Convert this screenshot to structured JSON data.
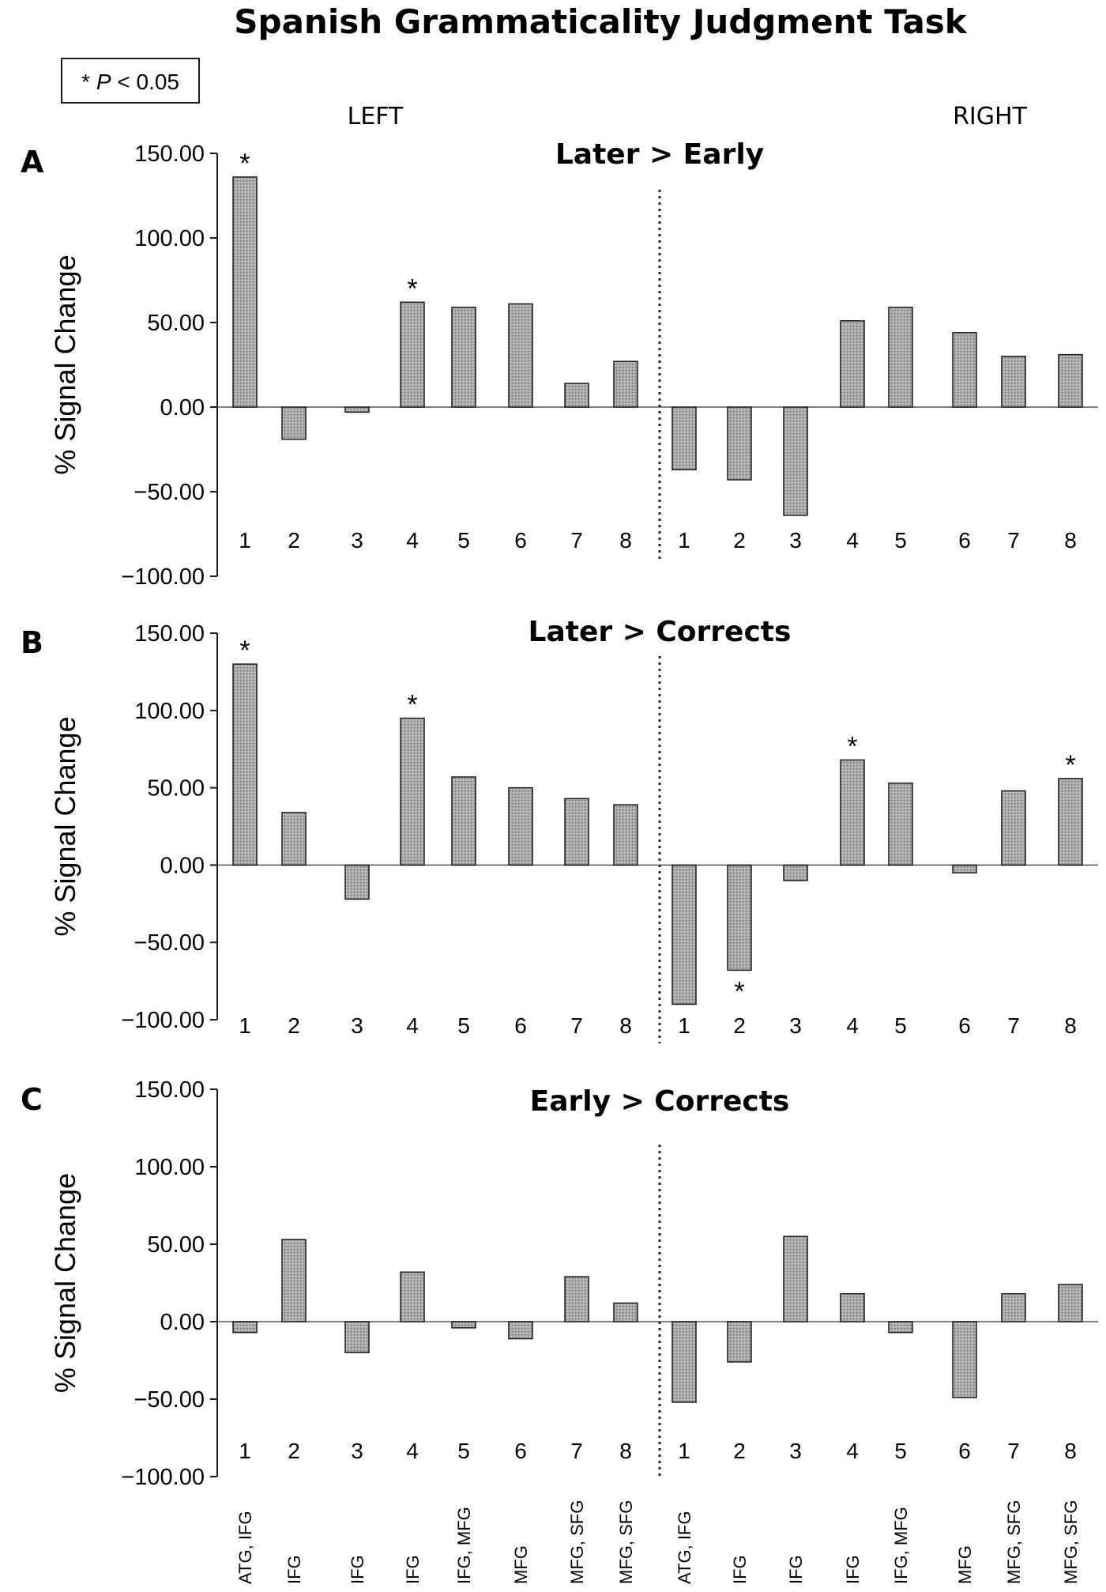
{
  "figure": {
    "title": "Spanish Grammaticality Judgment Task",
    "legend": "* P < 0.05",
    "legend_star": "*",
    "legend_p": "P",
    "legend_rest": " < 0.05",
    "left_label": "LEFT",
    "right_label": "RIGHT",
    "region_labels": [
      "ATG, IFG",
      "IFG",
      "IFG",
      "IFG",
      "IFG, MFG",
      "MFG",
      "MFG, SFG",
      "MFG, SFG",
      "ATG, IFG",
      "IFG",
      "IFG",
      "IFG",
      "IFG, MFG",
      "MFG",
      "MFG, SFG",
      "MFG, SFG"
    ],
    "colors": {
      "bar_fill": "#a9a9a9",
      "bar_stroke": "#1a1a1a",
      "axis": "#1a1a1a",
      "baseline": "#555555"
    }
  },
  "chart_data": [
    {
      "type": "bar",
      "panel": "A",
      "title": "Later > Early",
      "ylabel": "% Signal Change",
      "ylim": [
        -100,
        150
      ],
      "yticks": [
        "150.00",
        "100.00",
        "50.00",
        "0.00",
        "−50.00",
        "−100.00"
      ],
      "categories": [
        "1",
        "2",
        "3",
        "4",
        "5",
        "6",
        "7",
        "8",
        "1",
        "2",
        "3",
        "4",
        "5",
        "6",
        "7",
        "8"
      ],
      "values": [
        136,
        -19,
        -3,
        62,
        59,
        61,
        14,
        27,
        -37,
        -43,
        -64,
        51,
        59,
        44,
        30,
        31
      ],
      "significant": [
        true,
        false,
        false,
        true,
        false,
        false,
        false,
        false,
        false,
        false,
        false,
        false,
        false,
        false,
        false,
        false
      ]
    },
    {
      "type": "bar",
      "panel": "B",
      "title": "Later > Corrects",
      "ylabel": "% Signal Change",
      "ylim": [
        -100,
        150
      ],
      "yticks": [
        "150.00",
        "100.00",
        "50.00",
        "0.00",
        "−50.00",
        "−100.00"
      ],
      "categories": [
        "1",
        "2",
        "3",
        "4",
        "5",
        "6",
        "7",
        "8",
        "1",
        "2",
        "3",
        "4",
        "5",
        "6",
        "7",
        "8"
      ],
      "values": [
        130,
        34,
        -22,
        95,
        57,
        50,
        43,
        39,
        -90,
        -68,
        -10,
        68,
        53,
        -5,
        48,
        56
      ],
      "significant": [
        true,
        false,
        false,
        true,
        false,
        false,
        false,
        false,
        false,
        true,
        false,
        true,
        false,
        false,
        false,
        true
      ]
    },
    {
      "type": "bar",
      "panel": "C",
      "title": "Early > Corrects",
      "ylabel": "% Signal Change",
      "ylim": [
        -100,
        150
      ],
      "yticks": [
        "150.00",
        "100.00",
        "50.00",
        "0.00",
        "−50.00",
        "−100.00"
      ],
      "categories": [
        "1",
        "2",
        "3",
        "4",
        "5",
        "6",
        "7",
        "8",
        "1",
        "2",
        "3",
        "4",
        "5",
        "6",
        "7",
        "8"
      ],
      "values": [
        -7,
        53,
        -20,
        32,
        -4,
        -11,
        29,
        12,
        -52,
        -26,
        55,
        18,
        -7,
        -49,
        18,
        24
      ],
      "significant": [
        false,
        false,
        false,
        false,
        false,
        false,
        false,
        false,
        false,
        false,
        false,
        false,
        false,
        false,
        false,
        false
      ]
    }
  ]
}
